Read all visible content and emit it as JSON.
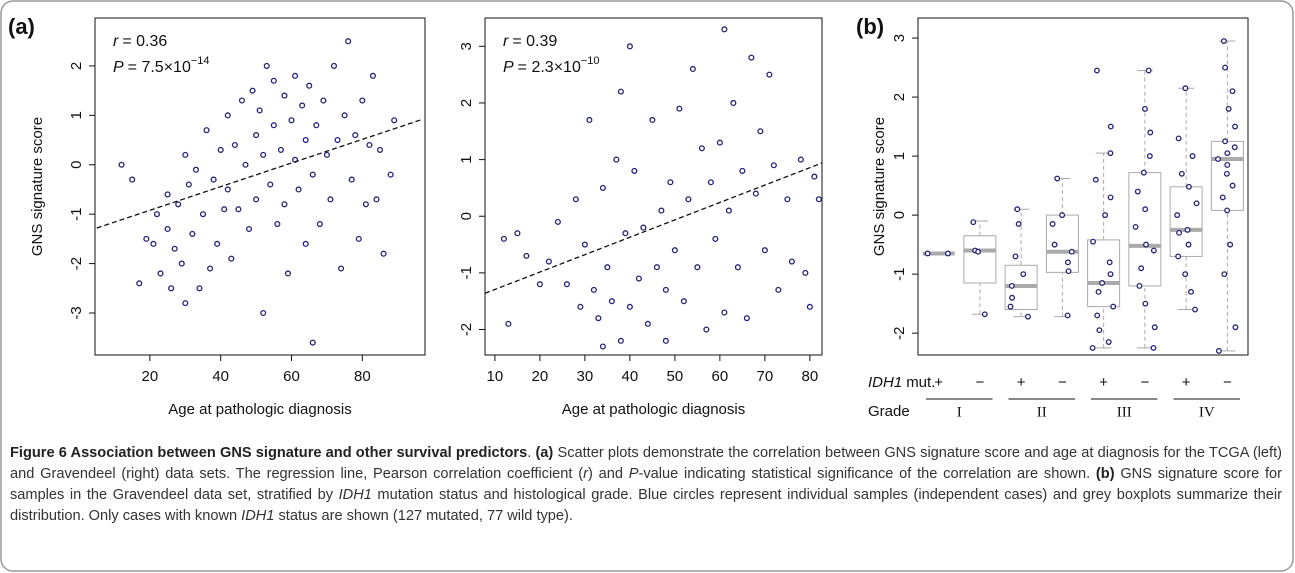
{
  "panel_labels": [
    "(a)",
    "(b)"
  ],
  "chart_data": [
    {
      "type": "scatter",
      "ylabel": "GNS signature score",
      "xlabel": "Age at pathologic diagnosis",
      "annotations": [
        {
          "symbol": "r",
          "text": "= 0.36"
        },
        {
          "symbol": "P",
          "text": "= 7.5×10",
          "sup": "−14"
        }
      ],
      "color": "#23237a",
      "xlim": [
        4.5,
        97.7
      ],
      "xticks": [
        20,
        40,
        60,
        80
      ],
      "ylim": [
        -3.85,
        2.97
      ],
      "yticks": [
        -3,
        -2,
        -1,
        0,
        1,
        2
      ],
      "regression": {
        "x": [
          5,
          97
        ],
        "y": [
          -1.28,
          0.92
        ]
      },
      "x": [
        12,
        15,
        17,
        19,
        21,
        22,
        23,
        25,
        25,
        26,
        27,
        28,
        29,
        30,
        30,
        31,
        32,
        33,
        34,
        35,
        36,
        37,
        38,
        39,
        40,
        41,
        42,
        42,
        43,
        44,
        45,
        46,
        47,
        48,
        49,
        50,
        50,
        51,
        52,
        52,
        53,
        54,
        55,
        55,
        56,
        57,
        58,
        58,
        59,
        60,
        61,
        61,
        62,
        63,
        64,
        64,
        65,
        66,
        66,
        67,
        68,
        69,
        70,
        71,
        72,
        73,
        74,
        75,
        76,
        77,
        78,
        79,
        80,
        81,
        82,
        83,
        84,
        85,
        86,
        88,
        89
      ],
      "y": [
        0.0,
        -0.3,
        -2.4,
        -1.5,
        -1.6,
        -1.0,
        -2.2,
        -1.3,
        -0.6,
        -2.5,
        -1.7,
        -0.8,
        -2.0,
        -2.8,
        0.2,
        -0.4,
        -1.4,
        -0.1,
        -2.5,
        -1.0,
        0.7,
        -2.1,
        -0.3,
        -1.6,
        0.3,
        -0.9,
        1.0,
        -0.5,
        -1.9,
        0.4,
        -0.9,
        1.3,
        0.0,
        -1.3,
        1.5,
        0.6,
        -0.7,
        1.1,
        0.2,
        -3.0,
        2.0,
        -0.4,
        1.7,
        0.8,
        -1.2,
        0.3,
        1.4,
        -0.8,
        -2.2,
        0.9,
        1.8,
        0.1,
        -0.5,
        1.2,
        -1.6,
        0.5,
        1.6,
        -0.2,
        -3.6,
        0.8,
        -1.2,
        1.3,
        0.2,
        -0.7,
        2.0,
        0.5,
        -2.1,
        1.0,
        2.5,
        -0.3,
        0.6,
        -1.5,
        1.3,
        -0.8,
        0.4,
        1.8,
        -0.7,
        0.3,
        -1.8,
        -0.2,
        0.9
      ]
    },
    {
      "type": "scatter",
      "xlabel": "Age at pathologic diagnosis",
      "annotations": [
        {
          "symbol": "r",
          "text": "= 0.39"
        },
        {
          "symbol": "P",
          "text": "= 2.3×10",
          "sup": "−10"
        }
      ],
      "color": "#23237a",
      "xlim": [
        7.8,
        82.7
      ],
      "xticks": [
        10,
        20,
        30,
        40,
        50,
        60,
        70,
        80
      ],
      "ylim": [
        -2.45,
        3.5
      ],
      "yticks": [
        -2,
        -1,
        0,
        1,
        2,
        3
      ],
      "regression": {
        "x": [
          7.8,
          82.7
        ],
        "y": [
          -1.36,
          0.94
        ]
      },
      "x": [
        12,
        13,
        15,
        17,
        20,
        22,
        24,
        26,
        28,
        29,
        30,
        31,
        32,
        33,
        34,
        34,
        35,
        36,
        37,
        38,
        38,
        39,
        40,
        40,
        41,
        42,
        43,
        44,
        45,
        46,
        47,
        48,
        48,
        49,
        50,
        51,
        52,
        53,
        54,
        55,
        56,
        57,
        58,
        59,
        60,
        61,
        61,
        62,
        63,
        64,
        65,
        66,
        67,
        68,
        69,
        70,
        71,
        72,
        73,
        75,
        76,
        78,
        79,
        80,
        81,
        82
      ],
      "y": [
        -0.4,
        -1.9,
        -0.3,
        -0.7,
        -1.2,
        -0.8,
        -0.1,
        -1.2,
        0.3,
        -1.6,
        -0.5,
        1.7,
        -1.3,
        -1.8,
        0.5,
        -2.3,
        -0.9,
        -1.5,
        1.0,
        -2.2,
        2.2,
        -0.3,
        -1.6,
        3.0,
        0.8,
        -1.1,
        -0.2,
        -1.9,
        1.7,
        -0.9,
        0.1,
        -1.3,
        -2.2,
        0.6,
        -0.6,
        1.9,
        -1.5,
        0.3,
        2.6,
        -0.9,
        1.2,
        -2.0,
        0.6,
        -0.4,
        1.3,
        3.3,
        -1.7,
        0.1,
        2.0,
        -0.9,
        0.8,
        -1.8,
        2.8,
        0.4,
        1.5,
        -0.6,
        2.5,
        0.9,
        -1.3,
        0.3,
        -0.8,
        1.0,
        -1.0,
        -1.6,
        0.7,
        0.3
      ]
    },
    {
      "type": "box",
      "ylabel": "GNS signature score",
      "color": "#23237a",
      "box_color": "#aaaaaa",
      "mutation_label": {
        "gene": "IDH1",
        "text": "mut."
      },
      "grade_label": "Grade",
      "categories": [
        "+",
        "−",
        "+",
        "−",
        "+",
        "−",
        "+",
        "−"
      ],
      "grades": [
        "I",
        "II",
        "III",
        "IV"
      ],
      "ylim": [
        -2.37,
        3.34
      ],
      "yticks": [
        -2,
        -1,
        0,
        1,
        2,
        3
      ],
      "boxes": [
        {
          "median": -0.65,
          "q1": -0.65,
          "q3": -0.65,
          "whisker_low": -0.65,
          "whisker_high": -0.65,
          "points": [
            -0.65,
            -0.65
          ]
        },
        {
          "median": -0.6,
          "q1": -1.15,
          "q3": -0.35,
          "whisker_low": -1.68,
          "whisker_high": -0.1,
          "points": [
            -1.68,
            -0.6,
            -0.62,
            -0.12
          ]
        },
        {
          "median": -1.2,
          "q1": -1.6,
          "q3": -0.85,
          "whisker_low": -1.72,
          "whisker_high": 0.1,
          "points": [
            -1.72,
            -1.55,
            -1.4,
            -1.2,
            -1.0,
            -0.7,
            -0.15,
            0.1
          ]
        },
        {
          "median": -0.62,
          "q1": -0.97,
          "q3": 0.0,
          "whisker_low": -1.72,
          "whisker_high": 0.62,
          "points": [
            -1.7,
            -0.95,
            -0.8,
            -0.62,
            -0.5,
            -0.15,
            0.0,
            0.62
          ]
        },
        {
          "median": -1.15,
          "q1": -1.55,
          "q3": -0.42,
          "whisker_low": -2.25,
          "whisker_high": 1.05,
          "points": [
            -2.25,
            -2.15,
            -1.95,
            -1.7,
            -1.55,
            -1.3,
            -1.15,
            -1.0,
            -0.8,
            -0.45,
            0.0,
            0.3,
            0.6,
            1.05,
            1.5,
            2.45
          ]
        },
        {
          "median": -0.52,
          "q1": -1.2,
          "q3": 0.72,
          "whisker_low": -2.25,
          "whisker_high": 2.45,
          "points": [
            -2.25,
            -1.9,
            -1.5,
            -1.2,
            -0.9,
            -0.6,
            -0.5,
            -0.2,
            0.1,
            0.4,
            0.72,
            1.0,
            1.4,
            1.8,
            2.45
          ]
        },
        {
          "median": -0.25,
          "q1": -0.7,
          "q3": 0.48,
          "whisker_low": -1.6,
          "whisker_high": 2.15,
          "points": [
            -1.6,
            -1.3,
            -1.0,
            -0.7,
            -0.5,
            -0.3,
            -0.25,
            0.0,
            0.2,
            0.48,
            0.7,
            1.0,
            1.3,
            2.15
          ]
        },
        {
          "median": 0.95,
          "q1": 0.08,
          "q3": 1.25,
          "whisker_low": -2.3,
          "whisker_high": 2.95,
          "points": [
            -2.3,
            -1.9,
            -1.0,
            -0.5,
            0.08,
            0.3,
            0.5,
            0.7,
            0.85,
            0.95,
            1.05,
            1.15,
            1.25,
            1.5,
            1.8,
            2.1,
            2.5,
            2.95
          ]
        }
      ]
    }
  ],
  "caption": [
    {
      "text": "Figure 6 Association between GNS signature and other survival predictors",
      "style": "bold"
    },
    {
      "text": ". ",
      "style": "normal"
    },
    {
      "text": "(a)",
      "style": "bold"
    },
    {
      "text": " Scatter plots demonstrate the correlation between GNS signature score and age at diagnosis for the TCGA (left) and Gravendeel (right) data sets. The regression line, Pearson correlation coefficient (",
      "style": "normal"
    },
    {
      "text": "r",
      "style": "italic"
    },
    {
      "text": ") and ",
      "style": "normal"
    },
    {
      "text": "P",
      "style": "italic"
    },
    {
      "text": "-value indicating statistical significance of the correlation are shown. ",
      "style": "normal"
    },
    {
      "text": "(b)",
      "style": "bold"
    },
    {
      "text": " GNS signature score for samples in the Gravendeel data set, stratified by ",
      "style": "normal"
    },
    {
      "text": "IDH1",
      "style": "italic"
    },
    {
      "text": " mutation status and histological grade. Blue circles represent individual samples (independent cases) and grey boxplots summarize their distribution. Only cases with known ",
      "style": "normal"
    },
    {
      "text": "IDH1",
      "style": "italic"
    },
    {
      "text": " status are shown (127 mutated, 77 wild type).",
      "style": "normal"
    }
  ]
}
